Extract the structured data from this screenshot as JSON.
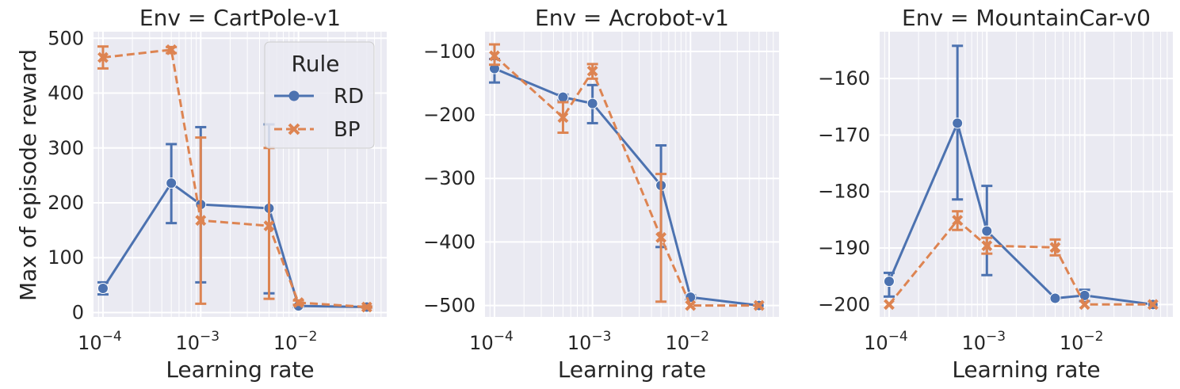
{
  "figure": {
    "ylabel_shared": "Max of episode reward",
    "legend": {
      "title": "Rule",
      "items": [
        "RD",
        "BP"
      ]
    }
  },
  "colors": {
    "RD": "#4c72b0",
    "BP": "#dd8452",
    "background": "#eaeaf2",
    "grid": "#ffffff"
  },
  "chart_data": [
    {
      "type": "line",
      "title": "Env = CartPole-v1",
      "xlabel": "Learning rate",
      "ylabel": "Max of episode reward",
      "xscale": "log",
      "xlim": [
        8e-05,
        0.08
      ],
      "ylim": [
        -8,
        512
      ],
      "xticks": [
        0.0001,
        0.001,
        0.01
      ],
      "xtick_labels": [
        "10^-4",
        "10^-3",
        "10^-2"
      ],
      "yticks": [
        0,
        100,
        200,
        300,
        400,
        500
      ],
      "ytick_labels": [
        "0",
        "100",
        "200",
        "300",
        "400",
        "500"
      ],
      "legend": "top-right",
      "series": [
        {
          "name": "RD",
          "x": [
            0.0001,
            0.0005,
            0.001,
            0.005,
            0.01,
            0.05
          ],
          "y": [
            44,
            236,
            197,
            190,
            12,
            10
          ],
          "err_low": [
            33,
            163,
            55,
            35,
            10,
            9
          ],
          "err_high": [
            55,
            307,
            338,
            343,
            14,
            11
          ]
        },
        {
          "name": "BP",
          "x": [
            0.0001,
            0.0005,
            0.001,
            0.005,
            0.01,
            0.05
          ],
          "y": [
            465,
            479,
            168,
            158,
            18,
            10
          ],
          "err_low": [
            445,
            473,
            16,
            25,
            14,
            9
          ],
          "err_high": [
            485,
            484,
            319,
            300,
            22,
            11
          ]
        }
      ]
    },
    {
      "type": "line",
      "title": "Env = Acrobot-v1",
      "xlabel": "Learning rate",
      "ylabel": "",
      "xscale": "log",
      "xlim": [
        8e-05,
        0.08
      ],
      "ylim": [
        -518,
        -69
      ],
      "xticks": [
        0.0001,
        0.001,
        0.01
      ],
      "xtick_labels": [
        "10^-4",
        "10^-3",
        "10^-2"
      ],
      "yticks": [
        -100,
        -200,
        -300,
        -400,
        -500
      ],
      "ytick_labels": [
        "−100",
        "−200",
        "−300",
        "−400",
        "−500"
      ],
      "series": [
        {
          "name": "RD",
          "x": [
            0.0001,
            0.0005,
            0.001,
            0.005,
            0.01,
            0.05
          ],
          "y": [
            -127,
            -172,
            -182,
            -311,
            -487,
            -500
          ],
          "err_low": [
            -149,
            -177,
            -213,
            -408,
            -490,
            -500
          ],
          "err_high": [
            -112,
            -168,
            -153,
            -248,
            -484,
            -500
          ]
        },
        {
          "name": "BP",
          "x": [
            0.0001,
            0.0005,
            0.001,
            0.005,
            0.01,
            0.05
          ],
          "y": [
            -107,
            -204,
            -131,
            -393,
            -500,
            -500
          ],
          "err_low": [
            -121,
            -228,
            -143,
            -494,
            -500,
            -500
          ],
          "err_high": [
            -89,
            -180,
            -120,
            -293,
            -500,
            -500
          ]
        }
      ]
    },
    {
      "type": "line",
      "title": "Env = MountainCar-v0",
      "xlabel": "Learning rate",
      "ylabel": "",
      "xscale": "log",
      "xlim": [
        8e-05,
        0.08
      ],
      "ylim": [
        -202.2,
        -151.7
      ],
      "xticks": [
        0.0001,
        0.001,
        0.01
      ],
      "xtick_labels": [
        "10^-4",
        "10^-3",
        "10^-2"
      ],
      "yticks": [
        -160,
        -170,
        -180,
        -190,
        -200
      ],
      "ytick_labels": [
        "−160",
        "−170",
        "−180",
        "−190",
        "−200"
      ],
      "series": [
        {
          "name": "RD",
          "x": [
            0.0001,
            0.0005,
            0.001,
            0.005,
            0.01,
            0.05
          ],
          "y": [
            -195.9,
            -167.9,
            -187.0,
            -198.9,
            -198.4,
            -200
          ],
          "err_low": [
            -198.6,
            -181.4,
            -194.8,
            -199.0,
            -199.4,
            -200
          ],
          "err_high": [
            -194.4,
            -154.2,
            -179.0,
            -198.8,
            -197.4,
            -200
          ]
        },
        {
          "name": "BP",
          "x": [
            0.0001,
            0.0005,
            0.001,
            0.005,
            0.01,
            0.05
          ],
          "y": [
            -200,
            -185.1,
            -189.6,
            -189.9,
            -200,
            -200
          ],
          "err_low": [
            -200,
            -186.8,
            -191.0,
            -191.3,
            -200,
            -200
          ],
          "err_high": [
            -200,
            -183.5,
            -188.2,
            -188.5,
            -200,
            -200
          ]
        }
      ]
    }
  ]
}
